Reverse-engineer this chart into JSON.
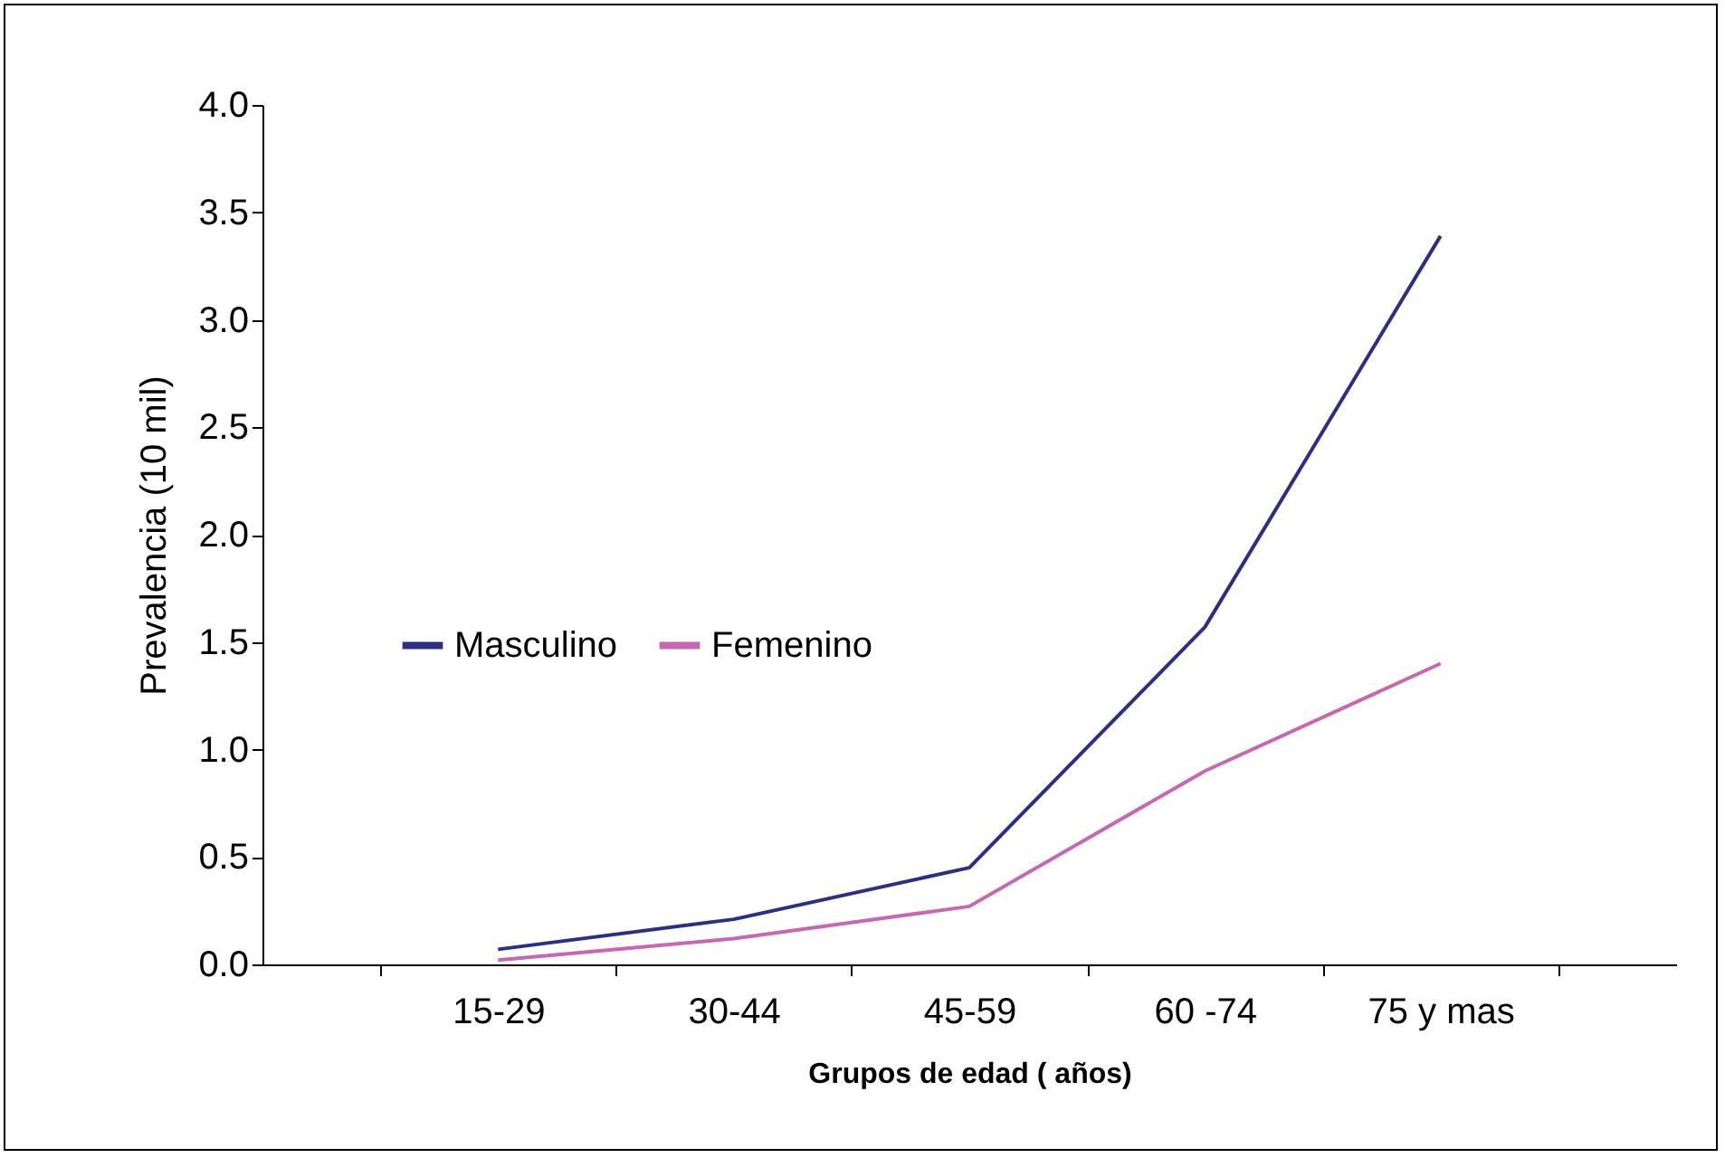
{
  "chart_data": {
    "type": "line",
    "xlabel": "Grupos de edad ( años)",
    "ylabel": "Prevalencia (10 mil)",
    "categories": [
      "15-29",
      "30-44",
      "45-59",
      "60 -74",
      "75 y mas"
    ],
    "series": [
      {
        "name": "Masculino",
        "color": "#2b2f86",
        "values": [
          0.07,
          0.21,
          0.45,
          1.57,
          3.39
        ]
      },
      {
        "name": "Femenino",
        "color": "#c866b4",
        "values": [
          0.02,
          0.12,
          0.27,
          0.9,
          1.4
        ]
      }
    ],
    "ylim": [
      0,
      4
    ],
    "yticks": [
      {
        "value": 0,
        "label": "0.0"
      },
      {
        "value": 0.5,
        "label": "0.5"
      },
      {
        "value": 1,
        "label": "1.0"
      },
      {
        "value": 1.5,
        "label": "1.5"
      },
      {
        "value": 2,
        "label": "2.0"
      },
      {
        "value": 2.5,
        "label": "2.5"
      },
      {
        "value": 3,
        "label": "3.0"
      },
      {
        "value": 3.5,
        "label": "3.5"
      },
      {
        "value": 4,
        "label": "4.0"
      }
    ],
    "grid": false,
    "legend": "left",
    "marker": "none",
    "line_style": "solid"
  }
}
